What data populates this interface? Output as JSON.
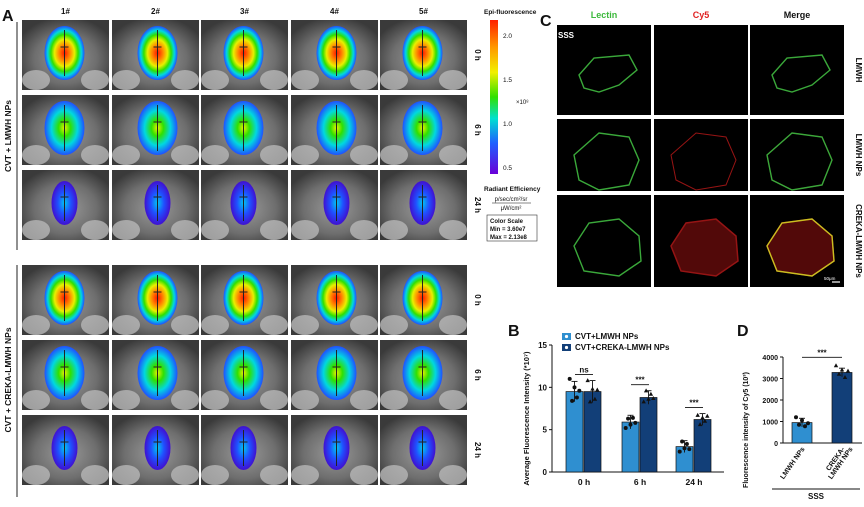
{
  "panel_a": {
    "letter": "A",
    "columns": [
      "1#",
      "2#",
      "3#",
      "4#",
      "5#"
    ],
    "groups": [
      {
        "label": "CVT + LMWH NPs",
        "rows": [
          "0 h",
          "6 h",
          "24 h"
        ]
      },
      {
        "label": "CVT + CREKA-LMWH NPs",
        "rows": [
          "0 h",
          "6 h",
          "24 h"
        ]
      }
    ],
    "scale_title": "Epi-fluorescence",
    "scale_ticks": [
      "2.0",
      "1.5",
      "1.0",
      "0.5"
    ],
    "scale_exponent": "×10⁸",
    "radiant_title": "Radiant Efficiency",
    "radiant_num": "p/sec/cm²/sr",
    "radiant_den": "μW/cm²",
    "color_scale": {
      "title": "Color Scale",
      "min": "Min = 3.60e7",
      "max": "Max = 2.13e8"
    }
  },
  "panel_c": {
    "letter": "C",
    "headers": [
      "Lectin",
      "Cy5",
      "Merge"
    ],
    "header_colors": [
      "#3cb93c",
      "#e02020",
      "#111111"
    ],
    "corner_label": "SSS",
    "rows": [
      "LMWH",
      "LMWH NPs",
      "CREKA-LMWH NPs"
    ],
    "scalebar_label": "50μm"
  },
  "panel_b": {
    "letter": "B",
    "chart_data": {
      "type": "bar",
      "categories": [
        "0 h",
        "6 h",
        "24 h"
      ],
      "series": [
        {
          "name": "CVT+LMWH NPs",
          "values": [
            9.5,
            5.9,
            3.0
          ],
          "errors": [
            1.2,
            0.8,
            0.7
          ],
          "color": "#2f8fd0",
          "points": [
            [
              11,
              8.4,
              10,
              8.8,
              9.6
            ],
            [
              5.2,
              6.3,
              5.6,
              6.4,
              5.8
            ],
            [
              2.4,
              3.6,
              2.8,
              3.3,
              2.7
            ]
          ]
        },
        {
          "name": "CVT+CREKA-LMWH NPs",
          "values": [
            9.5,
            8.8,
            6.2
          ],
          "errors": [
            1.3,
            0.8,
            0.7
          ],
          "color": "#123f78",
          "points": [
            [
              10.8,
              8.3,
              9.8,
              8.6,
              9.7
            ],
            [
              8.3,
              9.6,
              8.6,
              9.2,
              8.7
            ],
            [
              6.7,
              5.6,
              6.4,
              6.0,
              6.6
            ]
          ]
        }
      ],
      "significance": [
        "ns",
        "***",
        "***"
      ],
      "ylabel": "Average Fluorescence Intensity (*10⁷)",
      "ylim": [
        0,
        15
      ],
      "yticks": [
        "0",
        "5",
        "10",
        "15"
      ],
      "legend_position": "top-left"
    }
  },
  "panel_d": {
    "letter": "D",
    "chart_data": {
      "type": "bar",
      "categories": [
        "LMWH NPs",
        "CREKA-LMWH NPs"
      ],
      "category_labels": [
        [
          "LMWH NPs"
        ],
        [
          "CREKA-",
          "LMWH NPs"
        ]
      ],
      "values": [
        950,
        3280
      ],
      "errors": [
        200,
        200
      ],
      "colors": [
        "#2f8fd0",
        "#123f78"
      ],
      "points": [
        [
          1200,
          850,
          1050,
          780,
          920
        ],
        [
          3600,
          3200,
          3400,
          3050,
          3350
        ]
      ],
      "significance": "***",
      "ylabel": "Fluorescence intensity of Cy5 (10³)",
      "ylim": [
        0,
        4000
      ],
      "yticks": [
        "0",
        "1000",
        "2000",
        "3000",
        "4000"
      ],
      "group_label": "SSS"
    }
  }
}
